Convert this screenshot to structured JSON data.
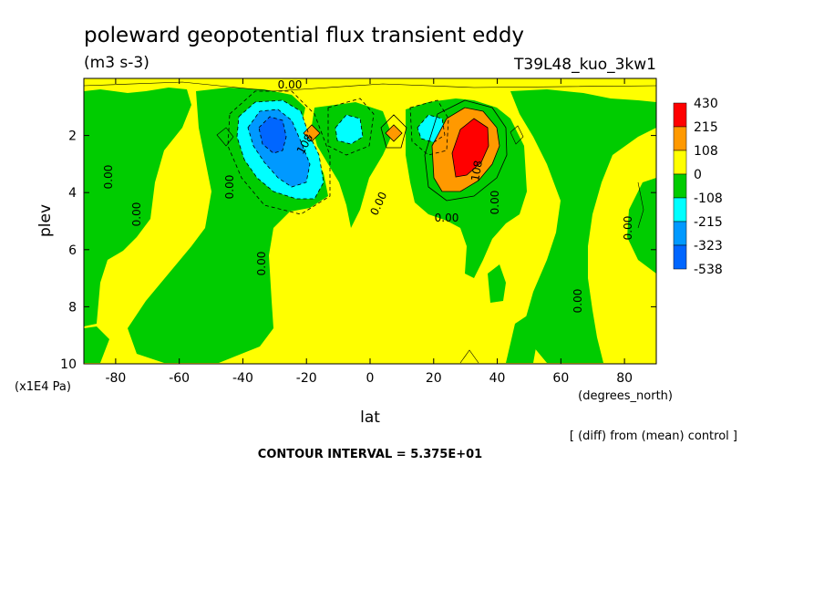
{
  "chart_data": {
    "type": "heatmap",
    "title": "poleward geopotential flux transient eddy",
    "units": "(m3 s-3)",
    "run_label": "T39L48_kuo_3kw1",
    "xlabel": "lat",
    "x_units": "(degrees_north)",
    "ylabel": "plev",
    "y_units": "(x1E4 Pa)",
    "x_ticks": [
      "-80",
      "-60",
      "-40",
      "-20",
      "0",
      "20",
      "40",
      "60",
      "80"
    ],
    "y_ticks": [
      "2",
      "4",
      "6",
      "8",
      "10"
    ],
    "xlim": [
      -90,
      90
    ],
    "ylim": [
      0,
      10
    ],
    "y_reversed": true,
    "legend": {
      "levels": [
        "430",
        "215",
        "108",
        "0",
        "-108",
        "-215",
        "-323",
        "-538"
      ],
      "colors": [
        "#ff0000",
        "#ff9900",
        "#ffff00",
        "#00cc00",
        "#00ffff",
        "#0099ff",
        "#0066ff"
      ]
    },
    "contour_labels": [
      "0.00",
      "0.00",
      "0.00",
      "0.00",
      "0.00",
      "0.00",
      "0.00",
      "0.00",
      "0.00",
      "0.00",
      "0.00",
      "0.00",
      "108",
      "108"
    ],
    "note": "[ (diff) from (mean) control ]",
    "contour_interval": "CONTOUR INTERVAL = 5.375E+01"
  }
}
